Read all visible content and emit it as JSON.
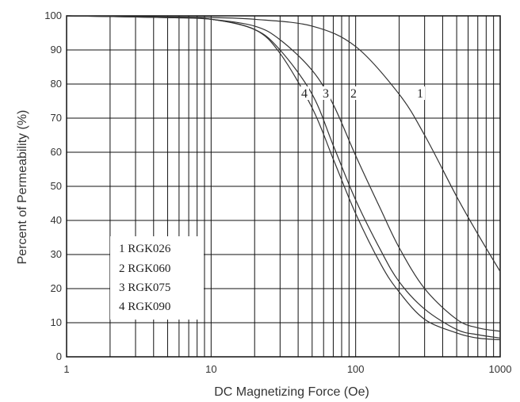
{
  "chart_data": {
    "type": "line",
    "xlabel": "DC Magnetizing Force (Oe)",
    "ylabel": "Percent of Permeability (%)",
    "xscale": "log",
    "xlim": [
      1,
      1000
    ],
    "ylim": [
      0,
      100
    ],
    "x_ticks": [
      "1",
      "10",
      "100",
      "1000"
    ],
    "y_ticks": [
      "0",
      "10",
      "20",
      "30",
      "40",
      "50",
      "60",
      "70",
      "80",
      "90",
      "100"
    ],
    "grid": true,
    "legend_position": "lower-left",
    "line_color": "#333333",
    "series": [
      {
        "name": "RGK026",
        "label": "1",
        "x": [
          1,
          5,
          10,
          20,
          50,
          100,
          200,
          300,
          500,
          700,
          1000
        ],
        "y": [
          100,
          99.7,
          99.5,
          99,
          97,
          91,
          77,
          65,
          47,
          36,
          25
        ]
      },
      {
        "name": "RGK060",
        "label": "2",
        "x": [
          1,
          5,
          10,
          20,
          30,
          50,
          70,
          100,
          150,
          200,
          300,
          500,
          700,
          1000
        ],
        "y": [
          100,
          99.5,
          99,
          97,
          93,
          84,
          74,
          59,
          43,
          32,
          20,
          11,
          8.5,
          7.5
        ]
      },
      {
        "name": "RGK075",
        "label": "3",
        "x": [
          1,
          5,
          10,
          20,
          30,
          50,
          70,
          100,
          150,
          200,
          300,
          500,
          700,
          1000
        ],
        "y": [
          100,
          99.5,
          99,
          96,
          90,
          77,
          62,
          46,
          31,
          22,
          14,
          8,
          6.5,
          5.5
        ]
      },
      {
        "name": "RGK090",
        "label": "4",
        "x": [
          1,
          5,
          10,
          20,
          30,
          50,
          70,
          100,
          150,
          200,
          300,
          500,
          700,
          1000
        ],
        "y": [
          100,
          99.5,
          99,
          96,
          89,
          73,
          58,
          42,
          27,
          19,
          11,
          7,
          5.5,
          5
        ]
      }
    ]
  },
  "legend": [
    {
      "num": "1",
      "name": "RGK026"
    },
    {
      "num": "2",
      "name": "RGK060"
    },
    {
      "num": "3",
      "name": "RGK075"
    },
    {
      "num": "4",
      "name": "RGK090"
    }
  ]
}
